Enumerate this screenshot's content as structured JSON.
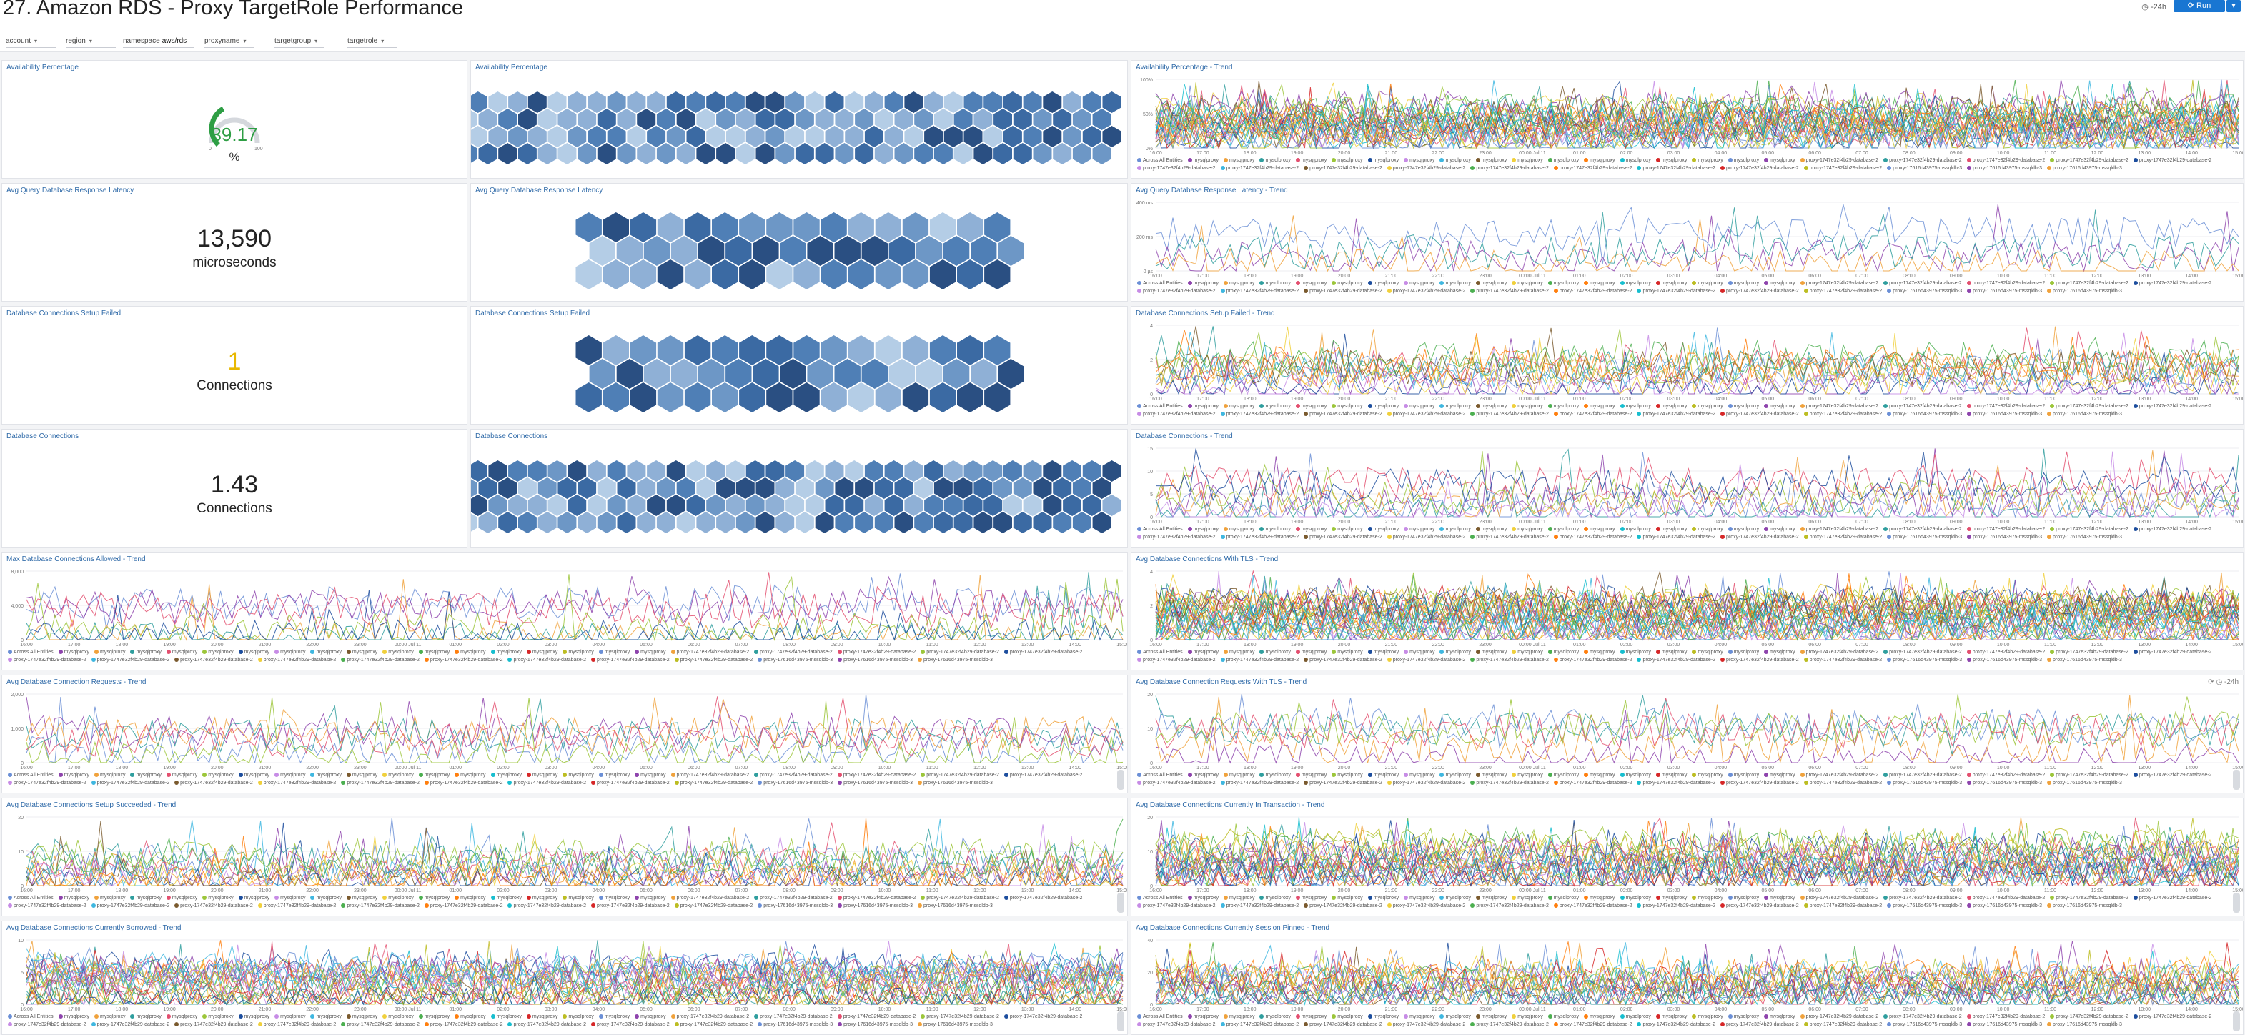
{
  "header": {
    "title": "27. Amazon RDS - Proxy TargetRole Performance",
    "time_range": "-24h",
    "run_label": "Run",
    "run_menu_icon": "chevron-down-icon"
  },
  "filters": [
    {
      "label": "account",
      "value": ""
    },
    {
      "label": "region",
      "value": ""
    },
    {
      "label": "namespace",
      "value": "aws/rds"
    },
    {
      "label": "proxyname",
      "value": ""
    },
    {
      "label": "targetgroup",
      "value": ""
    },
    {
      "label": "targetrole",
      "value": ""
    }
  ],
  "panels": {
    "availability_single": {
      "title": "Availability Percentage",
      "value": "39.17",
      "unit": "%",
      "gauge_fraction": 0.3917,
      "gauge_min": "0",
      "gauge_max": "100"
    },
    "availability_honey": {
      "title": "Availability Percentage"
    },
    "availability_trend": {
      "title": "Availability Percentage - Trend",
      "y_ticks": [
        "100%",
        "50%",
        "0%"
      ]
    },
    "latency_single": {
      "title": "Avg Query Database Response Latency",
      "value": "13,590",
      "unit": "microseconds"
    },
    "latency_honey": {
      "title": "Avg Query Database Response Latency"
    },
    "latency_trend": {
      "title": "Avg Query Database Response Latency - Trend",
      "y_ticks": [
        "400 ms",
        "200 ms",
        "0 µs"
      ]
    },
    "setup_failed_single": {
      "title": "Database Connections Setup Failed",
      "value": "1",
      "unit": "Connections"
    },
    "setup_failed_honey": {
      "title": "Database Connections Setup Failed"
    },
    "setup_failed_trend": {
      "title": "Database Connections Setup Failed - Trend",
      "y_label": "Connections",
      "y_ticks": [
        "4",
        "2",
        "0"
      ]
    },
    "connections_single": {
      "title": "Database Connections",
      "value": "1.43",
      "unit": "Connections"
    },
    "connections_honey": {
      "title": "Database Connections"
    },
    "connections_trend": {
      "title": "Database Connections - Trend",
      "y_label": "Connections",
      "y_ticks": [
        "15",
        "10",
        "5",
        "0"
      ]
    },
    "max_allowed_trend": {
      "title": "Max Database Connections Allowed - Trend",
      "y_label": "Connections",
      "y_ticks": [
        "8,000",
        "4,000",
        "0"
      ]
    },
    "tls_trend": {
      "title": "Avg Database Connections With TLS - Trend",
      "y_label": "Connections",
      "y_ticks": [
        "4",
        "2",
        "0"
      ]
    },
    "requests_trend": {
      "title": "Avg Database Connection Requests - Trend",
      "y_label": "Connections",
      "y_ticks": [
        "2,000",
        "1,000",
        "0"
      ]
    },
    "requests_tls_trend": {
      "title": "Avg Database Connection Requests With TLS - Trend",
      "y_label": "Connections",
      "y_ticks": [
        "20",
        "10",
        "0"
      ],
      "time_range": "-24h"
    },
    "setup_succeeded_trend": {
      "title": "Avg Database Connections Setup Succeeded - Trend",
      "y_label": "Connections",
      "y_ticks": [
        "20",
        "10",
        "0"
      ]
    },
    "in_transaction_trend": {
      "title": "Avg Database Connections Currently In Transaction - Trend",
      "y_label": "Connections",
      "y_ticks": [
        "20",
        "10",
        "0"
      ]
    },
    "borrowed_trend": {
      "title": "Avg Database Connections Currently Borrowed - Trend",
      "y_label": "Connections",
      "y_ticks": [
        "10",
        "5",
        "0"
      ]
    },
    "session_pinned_trend": {
      "title": "Avg Database Connections Currently Session Pinned - Trend",
      "y_label": "Connections",
      "y_ticks": [
        "40",
        "20",
        "0"
      ]
    }
  },
  "x_ticks": [
    "16:00",
    "17:00",
    "18:00",
    "19:00",
    "20:00",
    "21:00",
    "22:00",
    "23:00",
    "00:00 Jul 11",
    "01:00",
    "02:00",
    "03:00",
    "04:00",
    "05:00",
    "06:00",
    "07:00",
    "08:00",
    "09:00",
    "10:00",
    "11:00",
    "12:00",
    "13:00",
    "14:00",
    "15:00"
  ],
  "legend_items": [
    "Across All Entities",
    "mysqlproxy",
    "mysqlproxy",
    "mysqlproxy",
    "mysqlproxy",
    "mysqlproxy",
    "mysqlproxy",
    "mysqlproxy",
    "mysqlproxy",
    "mysqlproxy",
    "mysqlproxy",
    "mysqlproxy",
    "mysqlproxy",
    "mysqlproxy",
    "mysqlproxy",
    "mysqlproxy",
    "mysqlproxy",
    "mysqlproxy",
    "proxy-1747e32f4b29-database-2",
    "proxy-1747e32f4b29-database-2",
    "proxy-1747e32f4b29-database-2",
    "proxy-1747e32f4b29-database-2",
    "proxy-1747e32f4b29-database-2",
    "proxy-1747e32f4b29-database-2",
    "proxy-1747e32f4b29-database-2",
    "proxy-1747e32f4b29-database-2",
    "proxy-1747e32f4b29-database-2",
    "proxy-1747e32f4b29-database-2",
    "proxy-1747e32f4b29-database-2",
    "proxy-1747e32f4b29-database-2",
    "proxy-1747e32f4b29-database-2",
    "proxy-1747e32f4b29-database-2",
    "proxy-17616d43975-mssqldb-3",
    "proxy-17616d43975-mssqldb-3",
    "proxy-17616d43975-mssqldb-3"
  ],
  "colors": {
    "accent": "#1976d2",
    "title_blue": "#2f6aa8",
    "gauge_green": "#2e9e44",
    "gauge_track": "#d5d8dd",
    "warning_yellow": "#e8b800",
    "series_palette": [
      "#6b8fd6",
      "#8e44ad",
      "#f0a23c",
      "#2f9e9e",
      "#e34f6f",
      "#9cc63a",
      "#1d4e9e",
      "#c78ce6",
      "#3fb7e0",
      "#7a5a2e",
      "#f0d03c",
      "#4caf50",
      "#ff7f0e",
      "#17becf",
      "#d62728",
      "#bcbd22"
    ],
    "hex_blues": [
      "#2a4f82",
      "#3b6aa3",
      "#4f7fb6",
      "#6d97c6",
      "#8fb0d6",
      "#b4cde6"
    ]
  }
}
